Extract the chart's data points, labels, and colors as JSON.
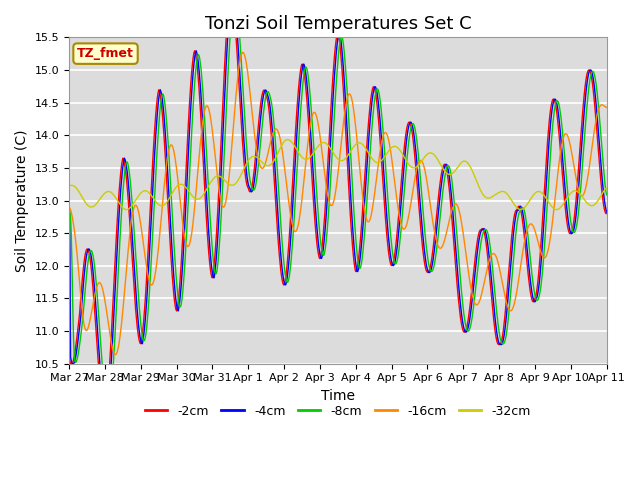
{
  "title": "Tonzi Soil Temperatures Set C",
  "xlabel": "Time",
  "ylabel": "Soil Temperature (C)",
  "ylim": [
    10.5,
    15.5
  ],
  "series_labels": [
    "-2cm",
    "-4cm",
    "-8cm",
    "-16cm",
    "-32cm"
  ],
  "series_colors": [
    "#ff0000",
    "#0000ff",
    "#00cc00",
    "#ff8800",
    "#cccc00"
  ],
  "annotation_text": "TZ_fmet",
  "annotation_color": "#cc0000",
  "annotation_bg": "#ffffcc",
  "annotation_border": "#aa8800",
  "bg_color": "#dcdcdc",
  "grid_color": "#ffffff",
  "title_fontsize": 13,
  "axis_fontsize": 8,
  "label_fontsize": 10,
  "legend_fontsize": 9,
  "tick_dates": [
    "Mar 27",
    "Mar 28",
    "Mar 29",
    "Mar 30",
    "Mar 31",
    "Apr 1",
    "Apr 2",
    "Apr 3",
    "Apr 4",
    "Apr 5",
    "Apr 6",
    "Apr 7",
    "Apr 8",
    "Apr 9",
    "Apr 10",
    "Apr 11"
  ]
}
